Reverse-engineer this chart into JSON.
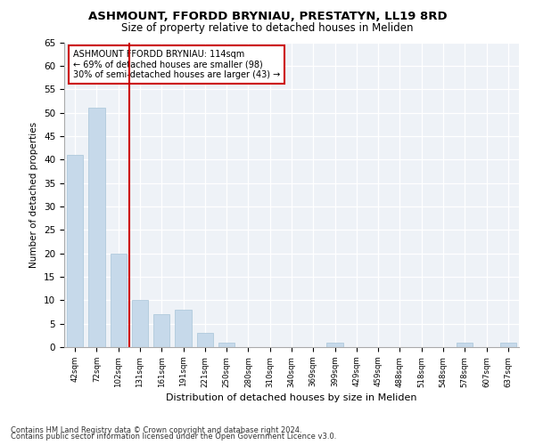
{
  "title_line1": "ASHMOUNT, FFORDD BRYNIAU, PRESTATYN, LL19 8RD",
  "title_line2": "Size of property relative to detached houses in Meliden",
  "xlabel": "Distribution of detached houses by size in Meliden",
  "ylabel": "Number of detached properties",
  "bar_labels": [
    "42sqm",
    "72sqm",
    "102sqm",
    "131sqm",
    "161sqm",
    "191sqm",
    "221sqm",
    "250sqm",
    "280sqm",
    "310sqm",
    "340sqm",
    "369sqm",
    "399sqm",
    "429sqm",
    "459sqm",
    "488sqm",
    "518sqm",
    "548sqm",
    "578sqm",
    "607sqm",
    "637sqm"
  ],
  "bar_values": [
    41,
    51,
    20,
    10,
    7,
    8,
    3,
    1,
    0,
    0,
    0,
    0,
    1,
    0,
    0,
    0,
    0,
    0,
    1,
    0,
    1
  ],
  "bar_color": "#c6d9ea",
  "bar_edgecolor": "#a8c4d8",
  "annotation_line1": "ASHMOUNT FFORDD BRYNIAU: 114sqm",
  "annotation_line2": "← 69% of detached houses are smaller (98)",
  "annotation_line3": "30% of semi-detached houses are larger (43) →",
  "vline_x": 2.5,
  "vline_color": "#cc0000",
  "box_color": "#cc0000",
  "ylim": [
    0,
    65
  ],
  "yticks": [
    0,
    5,
    10,
    15,
    20,
    25,
    30,
    35,
    40,
    45,
    50,
    55,
    60,
    65
  ],
  "footnote1": "Contains HM Land Registry data © Crown copyright and database right 2024.",
  "footnote2": "Contains public sector information licensed under the Open Government Licence v3.0.",
  "bg_color": "#ffffff",
  "plot_bg_color": "#eef2f7"
}
